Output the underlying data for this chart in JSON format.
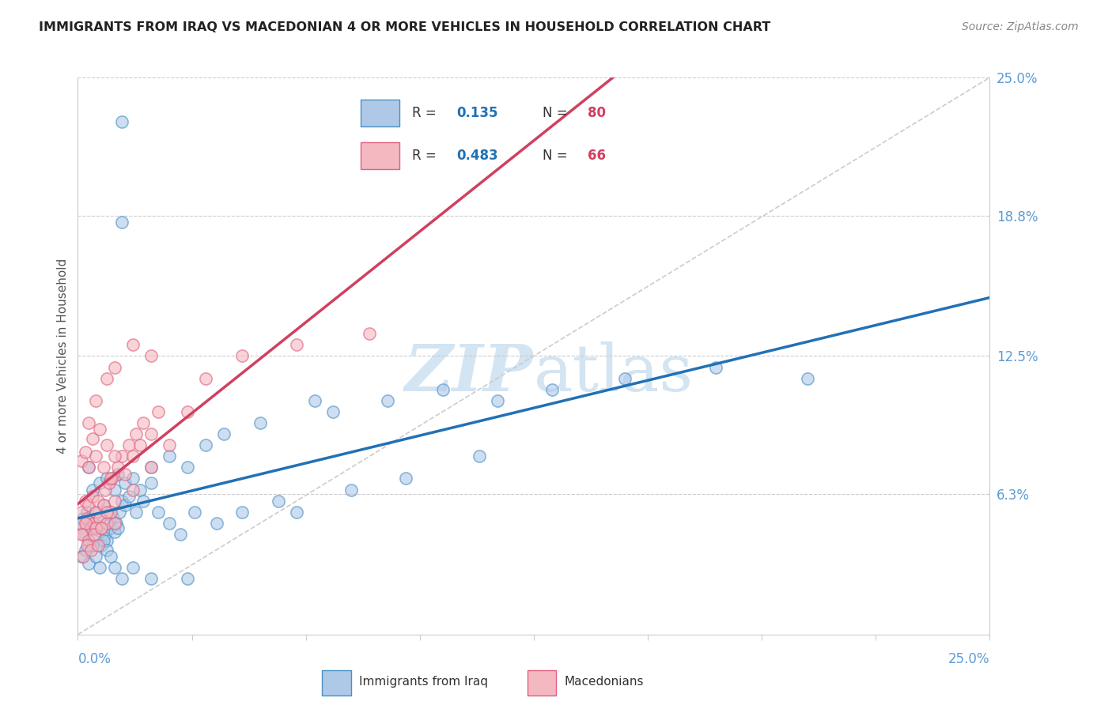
{
  "title": "IMMIGRANTS FROM IRAQ VS MACEDONIAN 4 OR MORE VEHICLES IN HOUSEHOLD CORRELATION CHART",
  "source": "Source: ZipAtlas.com",
  "ylabel": "4 or more Vehicles in Household",
  "ytick_vals": [
    0.0,
    6.3,
    12.5,
    18.8,
    25.0
  ],
  "ytick_labels": [
    "",
    "6.3%",
    "12.5%",
    "18.8%",
    "25.0%"
  ],
  "xlim": [
    0.0,
    25.0
  ],
  "ylim": [
    0.0,
    25.0
  ],
  "legend1_R": "0.135",
  "legend1_N": "80",
  "legend2_R": "0.483",
  "legend2_N": "66",
  "color_iraq": "#aec9e8",
  "color_iraq_edge": "#4a90c4",
  "color_iraq_line": "#2171b5",
  "color_mac": "#f4b8c1",
  "color_mac_edge": "#e06080",
  "color_mac_line": "#d04060",
  "watermark_color": "#cce0f0",
  "grid_color": "#cccccc",
  "tick_color": "#5b9bd5",
  "title_color": "#222222",
  "source_color": "#888888",
  "iraq_scatter_x": [
    1.2,
    1.2,
    0.3,
    0.4,
    0.6,
    0.8,
    1.0,
    1.1,
    1.3,
    1.5,
    1.7,
    2.0,
    2.5,
    3.0,
    3.5,
    4.0,
    5.0,
    6.5,
    7.0,
    8.5,
    10.0,
    11.5,
    13.0,
    15.0,
    17.5,
    20.0,
    0.05,
    0.1,
    0.15,
    0.2,
    0.25,
    0.3,
    0.35,
    0.4,
    0.45,
    0.5,
    0.55,
    0.6,
    0.65,
    0.7,
    0.75,
    0.8,
    0.85,
    0.9,
    0.95,
    1.0,
    1.05,
    1.1,
    1.15,
    1.2,
    1.3,
    1.4,
    1.6,
    1.8,
    2.0,
    2.2,
    2.5,
    2.8,
    3.2,
    3.8,
    4.5,
    5.5,
    6.0,
    7.5,
    9.0,
    11.0,
    0.1,
    0.2,
    0.3,
    0.4,
    0.5,
    0.6,
    0.7,
    0.8,
    0.9,
    1.0,
    1.2,
    1.5,
    2.0,
    3.0
  ],
  "iraq_scatter_y": [
    23.0,
    18.5,
    7.5,
    6.5,
    6.8,
    7.0,
    6.5,
    7.2,
    6.8,
    7.0,
    6.5,
    7.5,
    8.0,
    7.5,
    8.5,
    9.0,
    9.5,
    10.5,
    10.0,
    10.5,
    11.0,
    10.5,
    11.0,
    11.5,
    12.0,
    11.5,
    5.0,
    4.8,
    5.2,
    4.5,
    5.5,
    4.0,
    4.8,
    5.0,
    4.2,
    5.5,
    4.8,
    5.2,
    4.0,
    5.8,
    4.5,
    4.2,
    5.0,
    4.8,
    5.3,
    4.6,
    5.0,
    4.8,
    5.5,
    6.0,
    5.8,
    6.2,
    5.5,
    6.0,
    6.8,
    5.5,
    5.0,
    4.5,
    5.5,
    5.0,
    5.5,
    6.0,
    5.5,
    6.5,
    7.0,
    8.0,
    3.5,
    3.8,
    3.2,
    4.0,
    3.5,
    3.0,
    4.2,
    3.8,
    3.5,
    3.0,
    2.5,
    3.0,
    2.5,
    2.5
  ],
  "mac_scatter_x": [
    0.05,
    0.1,
    0.15,
    0.2,
    0.25,
    0.3,
    0.35,
    0.4,
    0.45,
    0.5,
    0.55,
    0.6,
    0.65,
    0.7,
    0.75,
    0.8,
    0.85,
    0.9,
    0.95,
    1.0,
    1.1,
    1.2,
    1.3,
    1.4,
    1.5,
    1.6,
    1.7,
    1.8,
    2.0,
    2.2,
    0.1,
    0.2,
    0.3,
    0.4,
    0.5,
    0.6,
    0.7,
    0.8,
    0.9,
    1.0,
    0.1,
    0.2,
    0.3,
    0.5,
    0.8,
    1.0,
    1.5,
    2.0,
    2.5,
    3.0,
    0.15,
    0.25,
    0.35,
    0.45,
    0.55,
    0.65,
    3.5,
    4.5,
    6.0,
    8.0,
    0.3,
    0.5,
    0.8,
    1.0,
    1.5,
    2.0
  ],
  "mac_scatter_y": [
    5.0,
    5.5,
    4.5,
    6.0,
    5.2,
    5.8,
    4.8,
    6.2,
    5.0,
    5.5,
    6.0,
    5.2,
    4.8,
    5.8,
    6.5,
    5.0,
    6.8,
    5.5,
    7.0,
    6.0,
    7.5,
    8.0,
    7.2,
    8.5,
    8.0,
    9.0,
    8.5,
    9.5,
    9.0,
    10.0,
    7.8,
    8.2,
    7.5,
    8.8,
    8.0,
    9.2,
    7.5,
    8.5,
    7.0,
    8.0,
    4.5,
    5.0,
    4.2,
    4.8,
    5.5,
    5.0,
    6.5,
    7.5,
    8.5,
    10.0,
    3.5,
    4.0,
    3.8,
    4.5,
    4.0,
    4.8,
    11.5,
    12.5,
    13.0,
    13.5,
    9.5,
    10.5,
    11.5,
    12.0,
    13.0,
    12.5
  ]
}
